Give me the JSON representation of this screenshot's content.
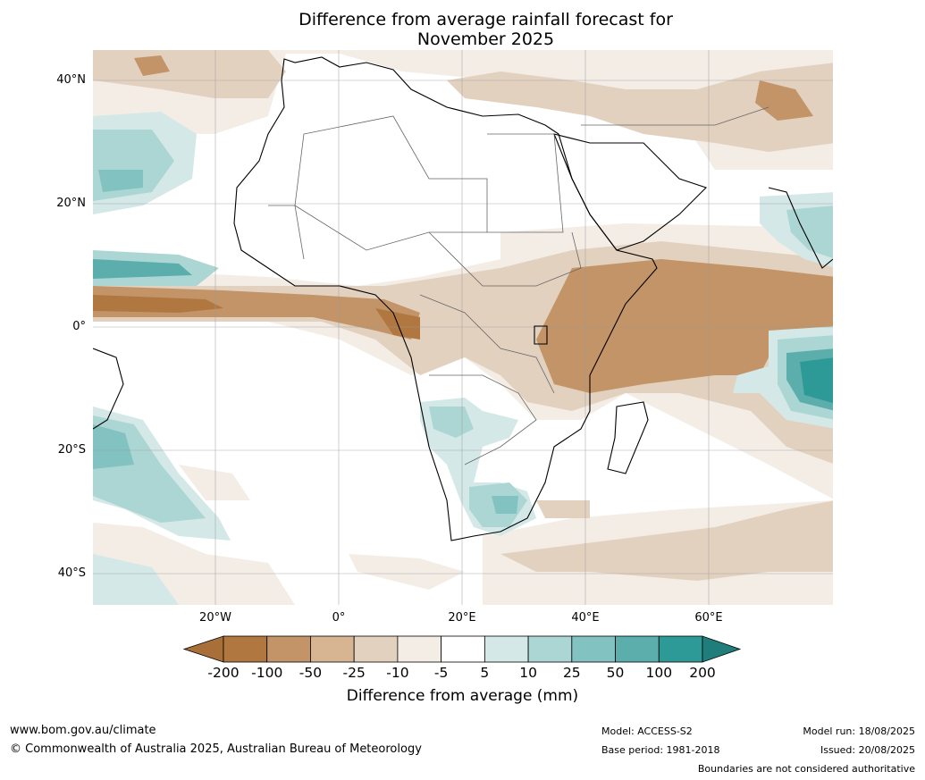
{
  "title": {
    "line1": "Difference from average rainfall forecast for",
    "line2": "November 2025"
  },
  "map": {
    "latitude_labels": [
      "40°N",
      "20°N",
      "0°",
      "20°S",
      "40°S"
    ],
    "longitude_labels": [
      "20°W",
      "0°",
      "20°E",
      "40°E",
      "60°E"
    ],
    "legend": {
      "title": "Difference from average (mm)",
      "ticks": [
        "-200",
        "-100",
        "-50",
        "-25",
        "-10",
        "-5",
        "5",
        "10",
        "25",
        "50",
        "100",
        "200"
      ],
      "colors": [
        "#a87038",
        "#b07840",
        "#c29468",
        "#d7b592",
        "#e3d1bf",
        "#f3ede6",
        "#ffffff",
        "#d3e8e7",
        "#acd6d4",
        "#82c2c0",
        "#5baeac",
        "#2e9a97",
        "#1f7d7b"
      ]
    }
  },
  "footer": {
    "website": "www.bom.gov.au/climate",
    "copyright": "© Commonwealth of Australia 2025, Australian Bureau of Meteorology",
    "model": "Model: ACCESS-S2",
    "base_period": "Base period: 1981-2018",
    "model_run": "Model run: 18/08/2025",
    "issued": "Issued: 20/08/2025",
    "boundaries_note": "Boundaries are not considered authoritative"
  }
}
